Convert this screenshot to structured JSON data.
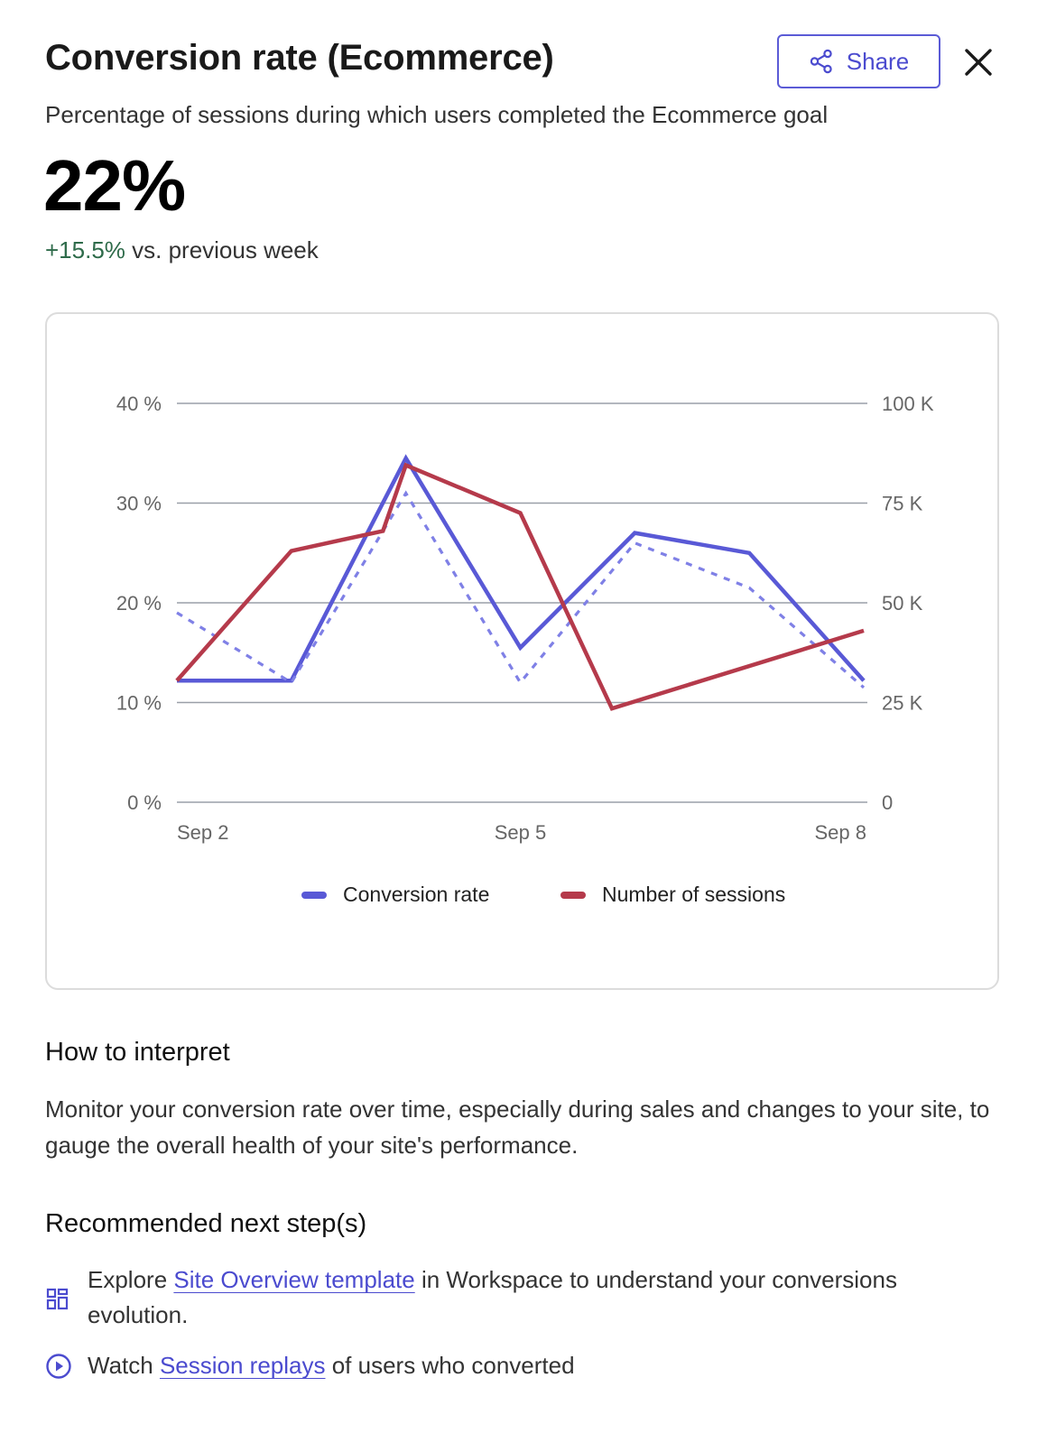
{
  "header": {
    "title": "Conversion rate (Ecommerce)",
    "share_label": "Share",
    "share_icon": "share-icon",
    "close_icon": "close-icon"
  },
  "summary": {
    "subtitle": "Percentage of sessions during which users completed the Ecommerce goal",
    "value": "22%",
    "change": "+15.5%",
    "change_suffix": " vs. previous week"
  },
  "colors": {
    "accent": "#5b5bd6",
    "conversion": "#5959d6",
    "sessions": "#b53a4b",
    "positive": "#2e6b4a",
    "grid": "#9a9fa8"
  },
  "chart_data": {
    "type": "line",
    "x": [
      "Sep 2",
      "Sep 3",
      "Sep 4",
      "Sep 5",
      "Sep 6",
      "Sep 7",
      "Sep 8"
    ],
    "x_tick_labels": [
      "Sep 2",
      "Sep 5",
      "Sep 8"
    ],
    "y_left": {
      "ticks": [
        0,
        10,
        20,
        30,
        40
      ],
      "tick_labels": [
        "0 %",
        "10 %",
        "20 %",
        "30 %",
        "40 %"
      ],
      "ylim": [
        0,
        40
      ]
    },
    "y_right": {
      "ticks": [
        0,
        25000,
        50000,
        75000,
        100000
      ],
      "tick_labels": [
        "0",
        "25 K",
        "50 K",
        "75 K",
        "100 K"
      ],
      "ylim": [
        0,
        100000
      ]
    },
    "grid": true,
    "legend_position": "bottom",
    "series": [
      {
        "name": "Conversion rate",
        "axis": "left",
        "style": "solid",
        "x_index": [
          0,
          1,
          2,
          3,
          4,
          5,
          6
        ],
        "values": [
          12.2,
          12.2,
          34.5,
          15.5,
          27.0,
          25.0,
          12.2
        ]
      },
      {
        "name": "Conversion rate (previous week)",
        "axis": "left",
        "style": "dashed",
        "in_legend": false,
        "x_index": [
          0,
          1,
          2,
          3,
          4,
          5,
          6
        ],
        "values": [
          19.0,
          12.0,
          31.0,
          12.0,
          26.0,
          21.5,
          11.5
        ]
      },
      {
        "name": "Number of sessions",
        "axis": "right",
        "style": "solid",
        "x_index": [
          0,
          1,
          1.8,
          2,
          3,
          3.8,
          6
        ],
        "values": [
          30500,
          63000,
          68000,
          84500,
          72500,
          23500,
          43000
        ]
      }
    ],
    "legend": [
      "Conversion rate",
      "Number of sessions"
    ]
  },
  "interpret": {
    "heading": "How to interpret",
    "text": "Monitor your conversion rate over time, especially during sales and changes to your site, to gauge the overall health of your site's performance."
  },
  "next_steps": {
    "heading": "Recommended next step(s)",
    "items": [
      {
        "icon": "layout-template-icon",
        "prefix": "Explore ",
        "link": "Site Overview template",
        "suffix": " in Workspace to understand your conversions evolution."
      },
      {
        "icon": "play-circle-icon",
        "prefix": "Watch ",
        "link": "Session replays",
        "suffix": " of users who converted"
      }
    ]
  }
}
